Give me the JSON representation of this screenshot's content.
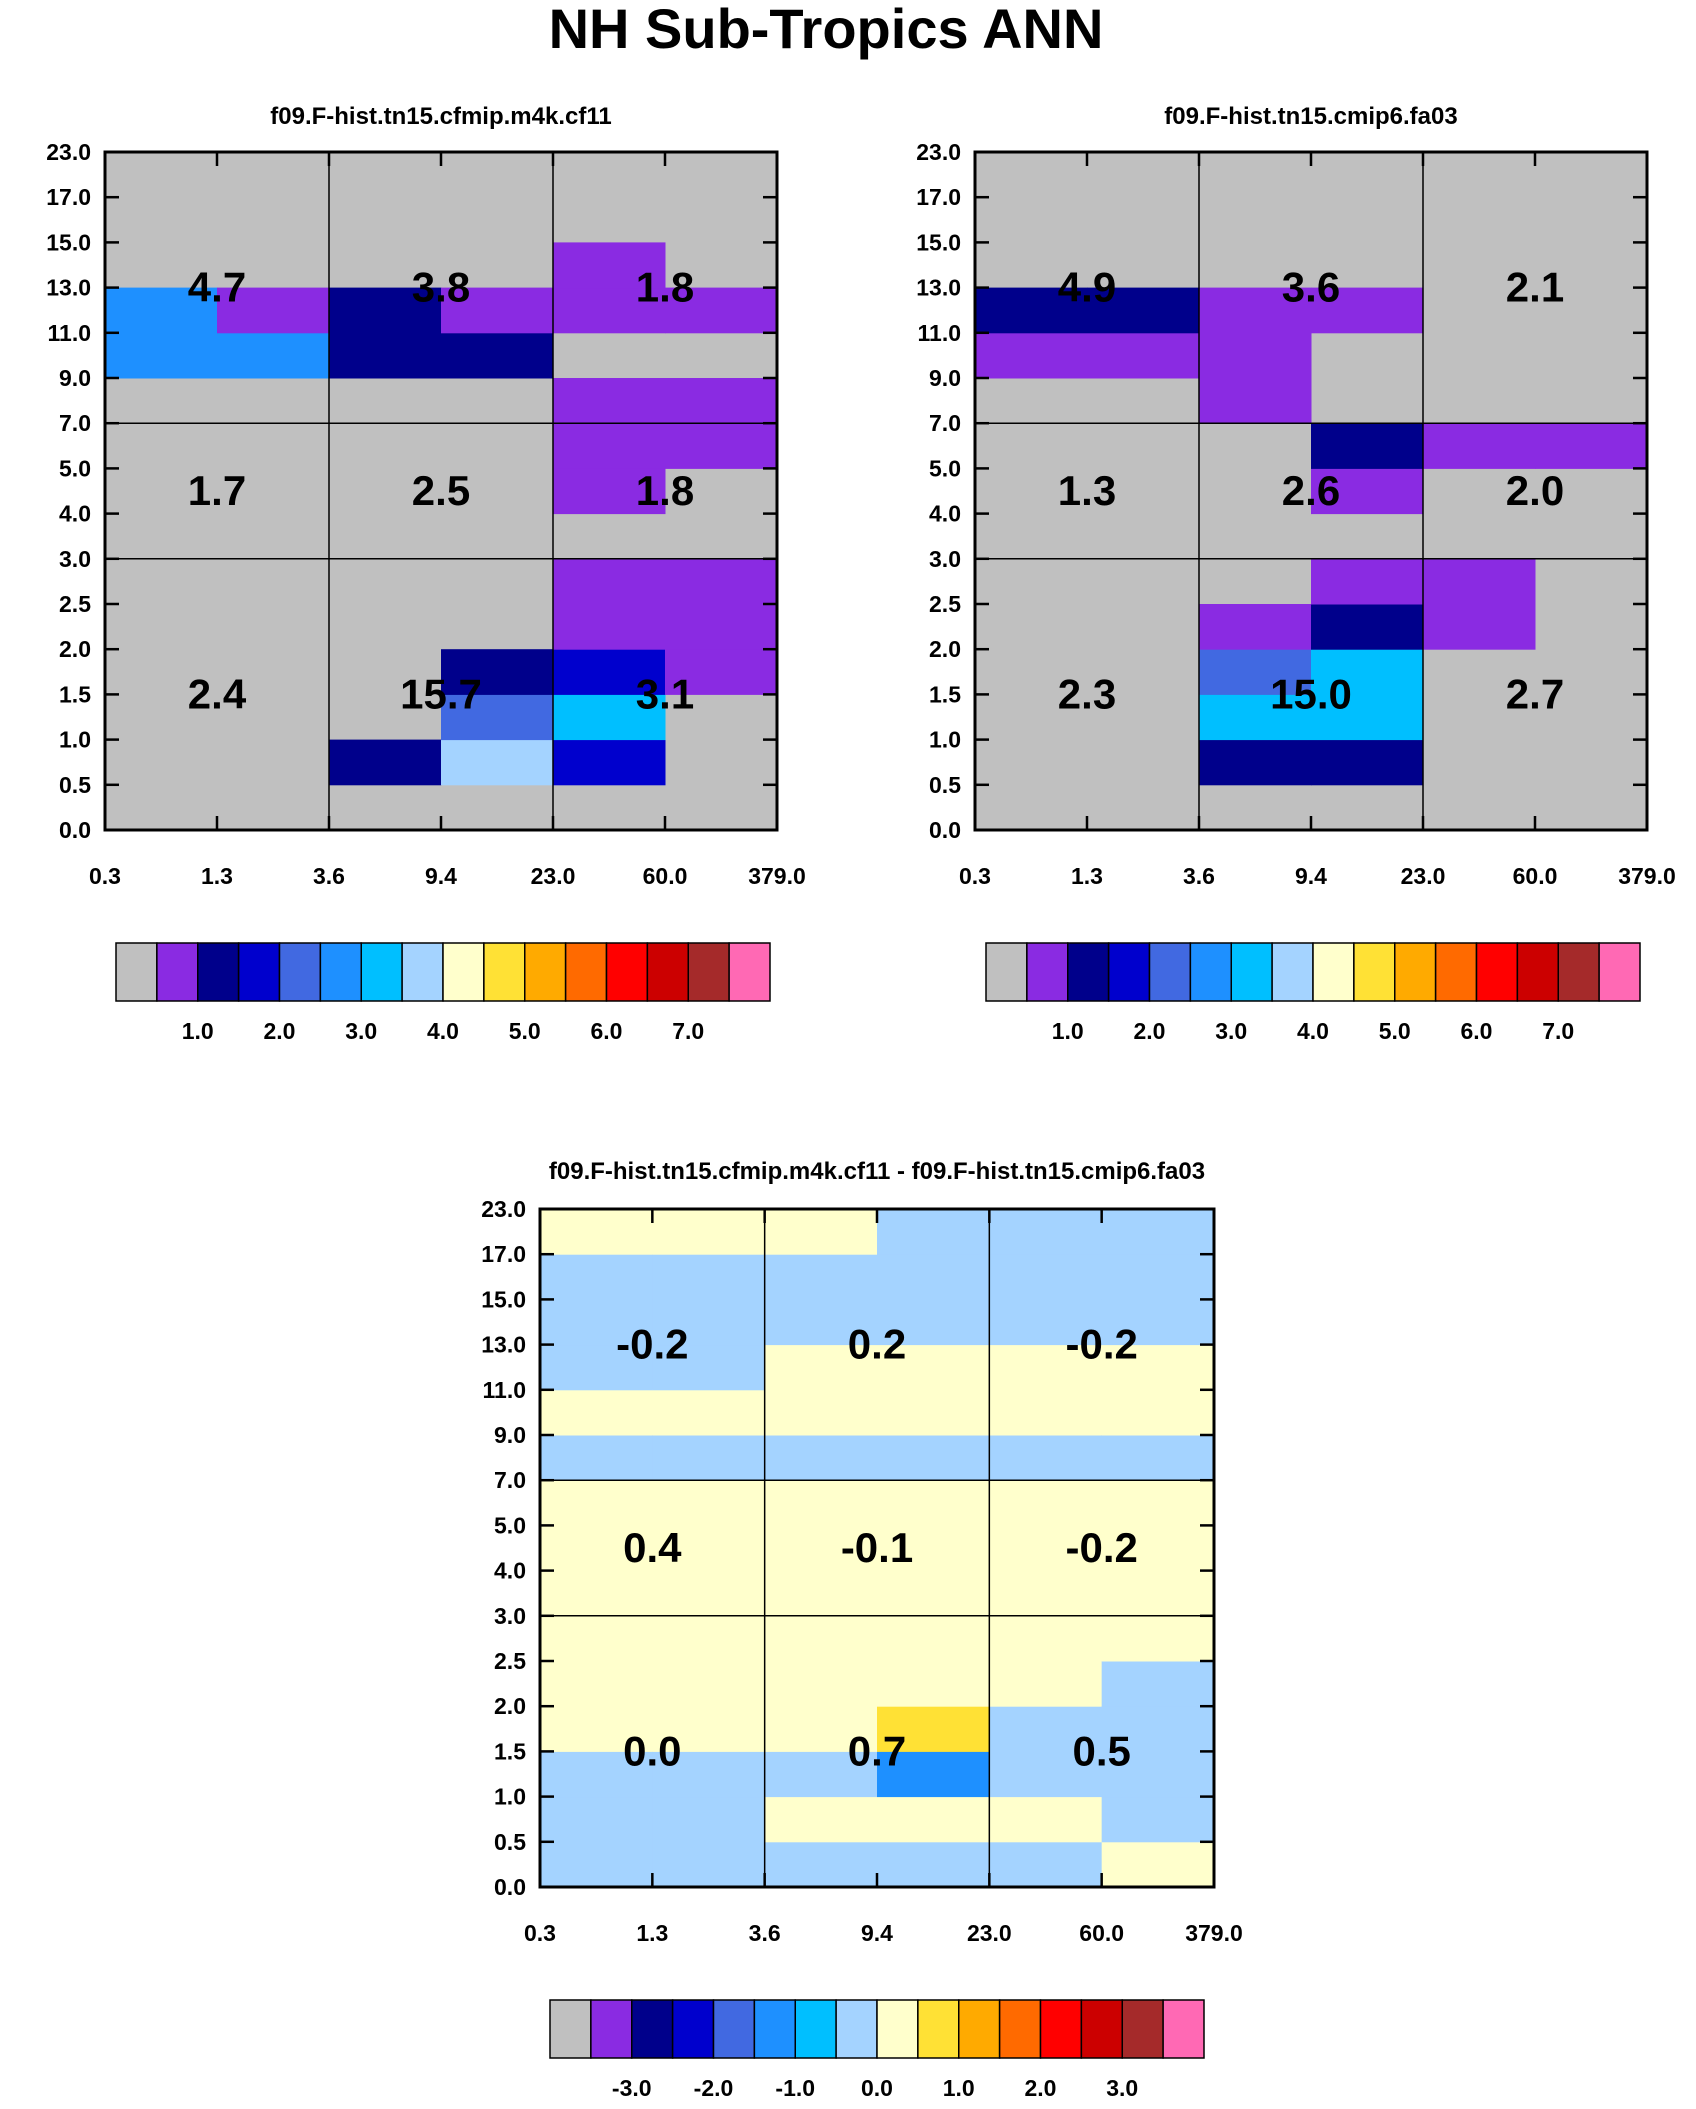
{
  "page_title": "NH Sub-Tropics ANN",
  "chart_data": [
    {
      "id": "panel-a",
      "type": "heatmap",
      "title": "f09.F-hist.tn15.cfmip.m4k.cf11",
      "colorscale": "main",
      "x_ticks": [
        "0.3",
        "1.3",
        "3.6",
        "9.4",
        "23.0",
        "60.0",
        "379.0"
      ],
      "y_ticks": [
        "0.0",
        "0.5",
        "1.0",
        "1.5",
        "2.0",
        "2.5",
        "3.0",
        "4.0",
        "5.0",
        "7.0",
        "9.0",
        "11.0",
        "13.0",
        "15.0",
        "17.0",
        "23.0"
      ],
      "cells": [
        [
          0,
          0,
          0,
          0,
          0,
          0,
          0,
          0,
          0,
          0,
          5,
          5,
          0,
          0,
          0
        ],
        [
          0,
          0,
          0,
          0,
          0,
          0,
          0,
          0,
          0,
          0,
          5,
          1,
          0,
          0,
          0
        ],
        [
          0,
          2,
          0,
          0,
          0,
          0,
          0,
          0,
          0,
          0,
          2,
          2,
          0,
          0,
          0
        ],
        [
          0,
          7,
          4,
          2,
          0,
          0,
          0,
          0,
          0,
          0,
          2,
          1,
          0,
          0,
          0
        ],
        [
          0,
          3,
          6,
          3,
          1,
          1,
          0,
          1,
          1,
          1,
          0,
          1,
          1,
          0,
          0
        ],
        [
          0,
          0,
          0,
          1,
          1,
          1,
          0,
          0,
          1,
          1,
          0,
          1,
          0,
          0,
          0
        ]
      ],
      "box_values": [
        [
          "2.4",
          "1.7",
          "4.7"
        ],
        [
          "15.7",
          "2.5",
          "3.8"
        ],
        [
          "3.1",
          "1.8",
          "1.8"
        ]
      ],
      "colorbar_labels": [
        "1.0",
        "2.0",
        "3.0",
        "4.0",
        "5.0",
        "6.0",
        "7.0"
      ]
    },
    {
      "id": "panel-b",
      "type": "heatmap",
      "title": "f09.F-hist.tn15.cmip6.fa03",
      "colorscale": "main",
      "x_ticks": [
        "0.3",
        "1.3",
        "3.6",
        "9.4",
        "23.0",
        "60.0",
        "379.0"
      ],
      "y_ticks": [
        "0.0",
        "0.5",
        "1.0",
        "1.5",
        "2.0",
        "2.5",
        "3.0",
        "4.0",
        "5.0",
        "7.0",
        "9.0",
        "11.0",
        "13.0",
        "15.0",
        "17.0",
        "23.0"
      ],
      "cells": [
        [
          0,
          0,
          0,
          0,
          0,
          0,
          0,
          0,
          0,
          0,
          1,
          2,
          0,
          0,
          0
        ],
        [
          0,
          0,
          0,
          0,
          0,
          0,
          0,
          0,
          0,
          0,
          1,
          2,
          0,
          0,
          0
        ],
        [
          0,
          2,
          6,
          4,
          1,
          0,
          0,
          0,
          0,
          1,
          1,
          1,
          0,
          0,
          0
        ],
        [
          0,
          2,
          6,
          6,
          2,
          1,
          0,
          1,
          2,
          0,
          0,
          1,
          0,
          0,
          0
        ],
        [
          0,
          0,
          0,
          0,
          1,
          1,
          0,
          0,
          1,
          0,
          0,
          0,
          0,
          0,
          0
        ],
        [
          0,
          0,
          0,
          0,
          0,
          0,
          0,
          0,
          1,
          0,
          0,
          0,
          0,
          0,
          0
        ]
      ],
      "box_values": [
        [
          "2.3",
          "1.3",
          "4.9"
        ],
        [
          "15.0",
          "2.6",
          "3.6"
        ],
        [
          "2.7",
          "2.0",
          "2.1"
        ]
      ],
      "colorbar_labels": [
        "1.0",
        "2.0",
        "3.0",
        "4.0",
        "5.0",
        "6.0",
        "7.0"
      ]
    },
    {
      "id": "panel-diff",
      "type": "heatmap",
      "title": "f09.F-hist.tn15.cfmip.m4k.cf11 - f09.F-hist.tn15.cmip6.fa03",
      "colorscale": "diff",
      "x_ticks": [
        "0.3",
        "1.3",
        "3.6",
        "9.4",
        "23.0",
        "60.0",
        "379.0"
      ],
      "y_ticks": [
        "0.0",
        "0.5",
        "1.0",
        "1.5",
        "2.0",
        "2.5",
        "3.0",
        "4.0",
        "5.0",
        "7.0",
        "9.0",
        "11.0",
        "13.0",
        "15.0",
        "17.0",
        "23.0"
      ],
      "cells": [
        [
          7,
          7,
          7,
          8,
          8,
          8,
          8,
          8,
          8,
          7,
          8,
          7,
          7,
          7,
          8
        ],
        [
          7,
          7,
          7,
          8,
          8,
          8,
          8,
          8,
          8,
          7,
          8,
          7,
          7,
          7,
          8
        ],
        [
          7,
          8,
          7,
          8,
          8,
          8,
          8,
          8,
          8,
          7,
          8,
          8,
          7,
          7,
          8
        ],
        [
          7,
          8,
          5,
          9,
          8,
          8,
          8,
          8,
          8,
          7,
          8,
          8,
          7,
          7,
          7
        ],
        [
          7,
          8,
          7,
          7,
          8,
          8,
          8,
          8,
          8,
          7,
          8,
          8,
          7,
          7,
          7
        ],
        [
          8,
          7,
          7,
          7,
          7,
          8,
          8,
          8,
          8,
          7,
          8,
          8,
          7,
          7,
          7
        ]
      ],
      "box_values": [
        [
          "0.0",
          "0.4",
          "-0.2"
        ],
        [
          "0.7",
          "-0.1",
          "0.2"
        ],
        [
          "0.5",
          "-0.2",
          "-0.2"
        ]
      ],
      "colorbar_labels": [
        "-3.0",
        "-2.0",
        "-1.0",
        "0.0",
        "1.0",
        "2.0",
        "3.0"
      ]
    }
  ],
  "colorscales": {
    "main": [
      "#c0c0c0",
      "#8a2be2",
      "#00008b",
      "#0000cd",
      "#4169e1",
      "#1e90ff",
      "#00bfff",
      "#a4d3ff",
      "#ffffcc",
      "#ffe135",
      "#ffaa00",
      "#ff6a00",
      "#ff0000",
      "#cc0000",
      "#a52a2a",
      "#ff69b4"
    ],
    "diff": [
      "#c0c0c0",
      "#8a2be2",
      "#00008b",
      "#0000cd",
      "#4169e1",
      "#1e90ff",
      "#00bfff",
      "#a4d3ff",
      "#ffffcc",
      "#ffe135",
      "#ffaa00",
      "#ff6a00",
      "#ff0000",
      "#cc0000",
      "#a52a2a",
      "#ff69b4"
    ]
  }
}
